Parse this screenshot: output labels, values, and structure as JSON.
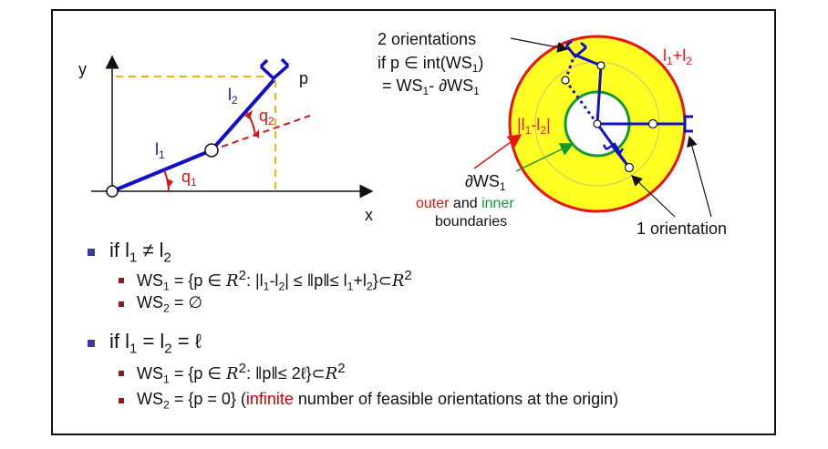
{
  "left_diagram": {
    "axis_y": "y",
    "axis_x": "x",
    "point_p": "p",
    "link1": "l",
    "link1_sub": "1",
    "link2": "l",
    "link2_sub": "2",
    "angle1": "q",
    "angle1_sub": "1",
    "angle2": "q",
    "angle2_sub": "2"
  },
  "right_diagram": {
    "orient2_line1": "2 orientations",
    "orient2_line2": "if p ∈ int(WS",
    "orient2_line2_sub": "1",
    "orient2_line2_end": ")",
    "orient2_line3": "= WS",
    "orient2_line3_sub1": "1",
    "orient2_line3_mid": "- ∂WS",
    "orient2_line3_sub2": "1",
    "outer_label": "l",
    "outer_sub1": "1",
    "outer_plus": "+l",
    "outer_sub2": "2",
    "inner_label": "|l",
    "inner_sub1": "1",
    "inner_minus": "-l",
    "inner_sub2": "2",
    "inner_end": "|",
    "boundary_ws": "∂WS",
    "boundary_ws_sub": "1",
    "boundary_outer": "outer",
    "boundary_and": " and ",
    "boundary_inner": "inner",
    "boundary_line2": "boundaries",
    "orient1": "1 orientation"
  },
  "bullets": {
    "case1": "if l",
    "case1_sub1": "1",
    "case1_neq": " ≠ l",
    "case1_sub2": "2",
    "ws1_a": "WS",
    "ws1_a_sub": "1",
    "ws1_b": " = {p ∈ ",
    "ws1_r": "R",
    "ws1_sup": "2",
    "ws1_c": ": |l",
    "ws1_c_sub1": "1",
    "ws1_d": "-l",
    "ws1_d_sub2": "2",
    "ws1_e": "| ≤ ‖p‖≤  l",
    "ws1_e_sub1": "1",
    "ws1_f": "+l",
    "ws1_f_sub2": "2",
    "ws1_g": "}⊂",
    "ws1_r2": "R",
    "ws1_sup2": "2",
    "ws2_a": "WS",
    "ws2_a_sub": "2",
    "ws2_b": " = ∅",
    "case2": "if l",
    "case2_sub1": "1",
    "case2_eq": " = l",
    "case2_sub2": "2",
    "case2_end": " = ℓ",
    "ws1b_a": "WS",
    "ws1b_a_sub": "1",
    "ws1b_b": " = {p ∈ ",
    "ws1b_r": "R",
    "ws1b_sup": "2",
    "ws1b_c": ": ‖p‖≤ 2ℓ}⊂",
    "ws1b_r2": "R",
    "ws1b_sup2": "2",
    "ws2b_a": "WS",
    "ws2b_a_sub": "2",
    "ws2b_b": " = {p = 0} (",
    "ws2b_red": "infinite",
    "ws2b_c": " number of feasible orientations at the origin)"
  },
  "colors": {
    "link": "#1010cc",
    "angle": "#dd1111",
    "dashed_yellow": "#f0b800",
    "workspace_fill": "#ffff22",
    "outer_ring": "#ee1111",
    "inner_ring": "#119933"
  }
}
